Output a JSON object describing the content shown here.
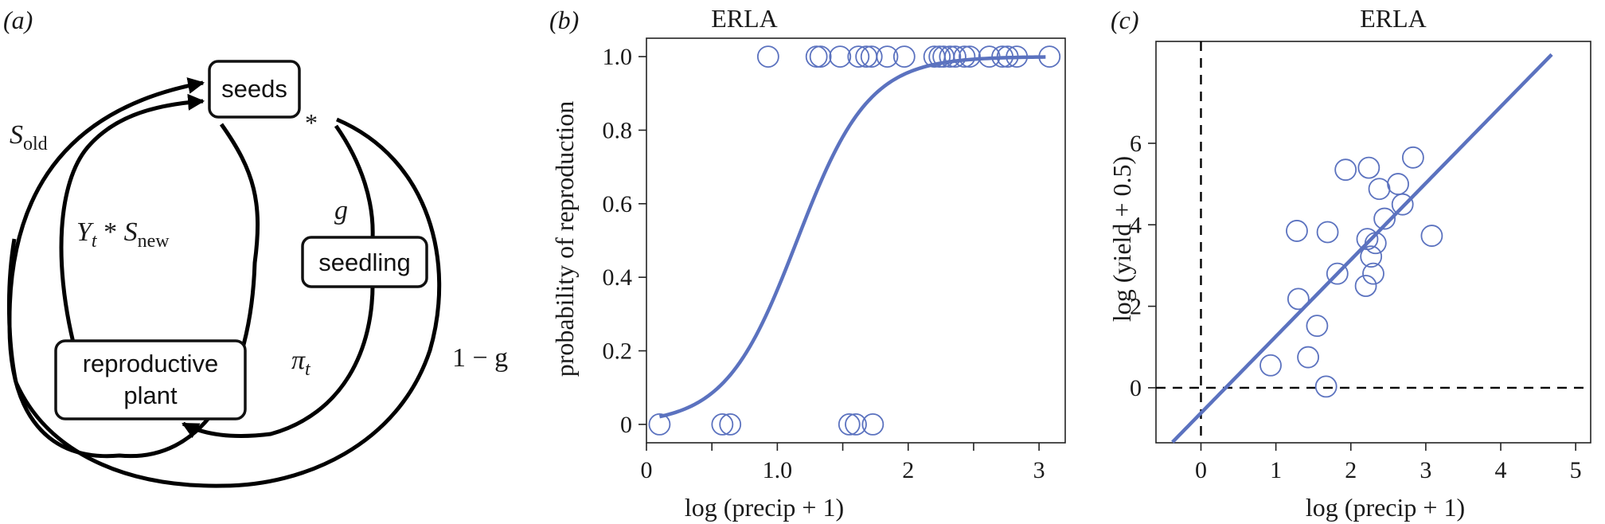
{
  "panel_a": {
    "label": "(a)",
    "boxes": {
      "seeds": "seeds",
      "seedling": "seedling",
      "reproductive_line1": "reproductive",
      "reproductive_line2": "plant"
    },
    "edges": {
      "s_old": {
        "base": "S",
        "sub": "old"
      },
      "yield": {
        "y": "Y",
        "y_sub": "t",
        "op": " * ",
        "s": "S",
        "s_sub": "new"
      },
      "germination": "g",
      "survival": {
        "base": "π",
        "sub": "t"
      },
      "no_germination": "1 − g",
      "star": "*"
    }
  },
  "colors": {
    "series": "#5b72bf",
    "axis": "#222222",
    "arrow": "#000000"
  },
  "chart_data": [
    {
      "panel_label": "(b)",
      "type": "scatter",
      "title": "ERLA",
      "xlabel": "log (precip + 1)",
      "ylabel": "probability of reproduction",
      "xlim": [
        0,
        3.2
      ],
      "ylim": [
        -0.05,
        1.05
      ],
      "xticks": [
        0,
        0.5,
        1.0,
        1.5,
        2,
        2.5,
        3
      ],
      "xtick_labels": [
        "0",
        "",
        "1.0",
        "",
        "2",
        "",
        "3"
      ],
      "yticks": [
        0,
        0.2,
        0.4,
        0.6,
        0.8,
        1.0
      ],
      "ytick_labels": [
        "0",
        "0.2",
        "0.4",
        "0.6",
        "0.8",
        "1.0"
      ],
      "points": {
        "x": [
          0.1,
          0.58,
          0.64,
          0.93,
          1.3,
          1.33,
          1.48,
          1.62,
          1.68,
          1.72,
          1.84,
          1.97,
          2.2,
          2.24,
          2.27,
          2.32,
          2.36,
          2.43,
          2.47,
          2.62,
          2.72,
          2.76,
          2.83,
          3.08,
          1.55,
          1.6,
          1.73
        ],
        "y": [
          0,
          0,
          0,
          1,
          1,
          1,
          1,
          1,
          1,
          1,
          1,
          1,
          1,
          1,
          1,
          1,
          1,
          1,
          1,
          1,
          1,
          1,
          1,
          1,
          0,
          0,
          0
        ]
      },
      "fit": {
        "kind": "logistic",
        "x_range": [
          0.1,
          3.05
        ],
        "intercept": -4.2,
        "slope": 3.65
      }
    },
    {
      "panel_label": "(c)",
      "type": "scatter",
      "title": "ERLA",
      "xlabel": "log (precip + 1)",
      "ylabel": "log (yield + 0.5)",
      "xlim": [
        -0.6,
        5.2
      ],
      "ylim": [
        -1.35,
        8.5
      ],
      "xticks": [
        0,
        1,
        2,
        3,
        4,
        5
      ],
      "xtick_labels": [
        "0",
        "1",
        "2",
        "3",
        "4",
        "5"
      ],
      "yticks": [
        0,
        2,
        4,
        6
      ],
      "ytick_labels": [
        "0",
        "2",
        "4",
        "6"
      ],
      "points": {
        "x": [
          0.93,
          1.28,
          1.3,
          1.43,
          1.55,
          1.67,
          1.69,
          1.82,
          1.93,
          2.2,
          2.22,
          2.24,
          2.27,
          2.3,
          2.33,
          2.38,
          2.45,
          2.63,
          2.69,
          2.83,
          3.08
        ],
        "y": [
          0.55,
          3.85,
          2.18,
          0.75,
          1.52,
          0.03,
          3.82,
          2.8,
          5.35,
          2.5,
          3.65,
          5.4,
          3.22,
          2.8,
          3.55,
          4.88,
          4.15,
          5.0,
          4.5,
          5.65,
          3.73
        ]
      },
      "fit": {
        "kind": "linear",
        "x_range": [
          -0.38,
          4.68
        ],
        "intercept": -0.62,
        "slope": 1.88
      },
      "reference_lines": {
        "x": 0,
        "y": 0
      }
    }
  ]
}
